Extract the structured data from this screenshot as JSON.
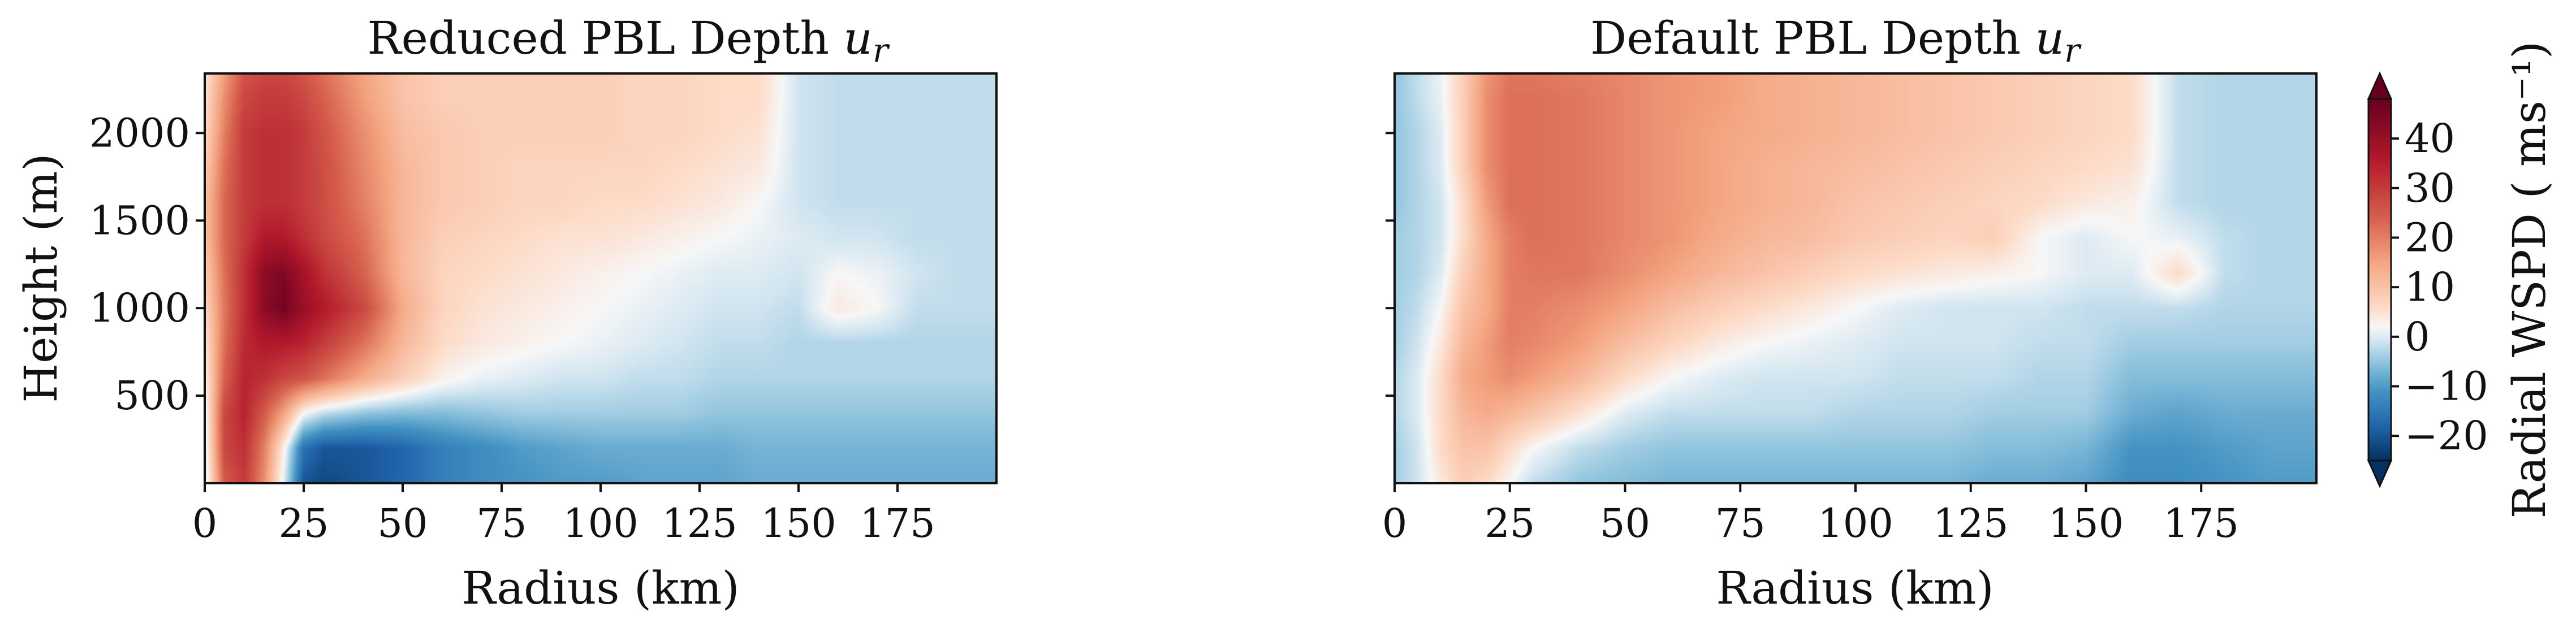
{
  "figure": {
    "colorbar_label": "Radial WSPD ( ms⁻¹)"
  },
  "chart_data": [
    {
      "type": "heatmap",
      "title": "Reduced PBL Depth u_r",
      "title_text": "Reduced PBL Depth ",
      "title_symbol": "u",
      "title_subscript": "r",
      "xlabel": "Radius (km)",
      "ylabel": "Height (m)",
      "xlim": [
        0,
        200
      ],
      "ylim": [
        0,
        2340
      ],
      "xticks": [
        0,
        25,
        50,
        75,
        100,
        125,
        150,
        175
      ],
      "yticks": [
        500,
        1000,
        1500,
        2000
      ],
      "z_units": "ms^-1",
      "x": [
        0,
        5,
        10,
        15,
        20,
        25,
        30,
        40,
        50,
        60,
        70,
        80,
        90,
        100,
        110,
        120,
        130,
        140,
        150,
        160,
        170,
        180,
        190,
        200
      ],
      "y": [
        0,
        200,
        400,
        600,
        800,
        1000,
        1200,
        1400,
        1600,
        1800,
        2000,
        2200,
        2340
      ],
      "z": [
        [
          -2,
          25,
          30,
          18,
          0,
          -20,
          -22,
          -20,
          -18,
          -14,
          -12,
          -11,
          -10,
          -10,
          -9,
          -9,
          -9,
          -8,
          -8,
          -8,
          -8,
          -8,
          -8,
          -8
        ],
        [
          -1,
          28,
          32,
          20,
          3,
          -16,
          -20,
          -20,
          -18,
          -14,
          -12,
          -10,
          -9,
          -8,
          -8,
          -8,
          -8,
          -7,
          -7,
          -7,
          -7,
          -7,
          -7,
          -7
        ],
        [
          0,
          28,
          34,
          25,
          15,
          2,
          -2,
          -5,
          -6,
          -6,
          -5,
          -4,
          -4,
          -4,
          -4,
          -4,
          -5,
          -5,
          -5,
          -5,
          -5,
          -5,
          -5,
          -5
        ],
        [
          2,
          24,
          34,
          32,
          28,
          26,
          22,
          14,
          8,
          3,
          1,
          0,
          -1,
          -1,
          -2,
          -2,
          -3,
          -3,
          -3,
          -3,
          -3,
          -3,
          -3,
          -3
        ],
        [
          4,
          22,
          33,
          36,
          36,
          34,
          30,
          22,
          12,
          6,
          4,
          3,
          2,
          1,
          0,
          -1,
          -2,
          -2,
          -3,
          -3,
          -3,
          -3,
          -3,
          -3
        ],
        [
          6,
          21,
          32,
          42,
          46,
          40,
          36,
          28,
          14,
          7,
          5,
          4,
          3,
          2,
          1,
          0,
          -1,
          -1,
          -2,
          4,
          2,
          -2,
          -2,
          -2
        ],
        [
          8,
          22,
          32,
          42,
          44,
          38,
          32,
          24,
          12,
          7,
          6,
          5,
          4,
          3,
          2,
          1,
          0,
          0,
          -1,
          2,
          1,
          -1,
          -2,
          -2
        ],
        [
          10,
          23,
          30,
          36,
          36,
          32,
          28,
          22,
          12,
          8,
          7,
          6,
          5,
          5,
          4,
          3,
          2,
          1,
          0,
          -1,
          -1,
          -2,
          -2,
          -2
        ],
        [
          10,
          23,
          30,
          32,
          32,
          30,
          27,
          20,
          12,
          9,
          8,
          7,
          7,
          6,
          6,
          5,
          4,
          2,
          -1,
          -2,
          -2,
          -2,
          -2,
          -2
        ],
        [
          8,
          22,
          30,
          32,
          32,
          30,
          27,
          19,
          12,
          9,
          8,
          7,
          7,
          7,
          7,
          6,
          5,
          4,
          -1,
          -2,
          -2,
          -2,
          -2,
          -2
        ],
        [
          6,
          20,
          30,
          32,
          32,
          30,
          26,
          18,
          11,
          9,
          8,
          8,
          8,
          8,
          7,
          7,
          6,
          5,
          -1,
          -2,
          -2,
          -2,
          -2,
          -2
        ],
        [
          5,
          18,
          28,
          30,
          30,
          28,
          24,
          16,
          10,
          8,
          8,
          8,
          8,
          8,
          7,
          7,
          6,
          6,
          -1,
          -2,
          -2,
          -2,
          -2,
          -2
        ],
        [
          4,
          16,
          26,
          28,
          28,
          26,
          22,
          15,
          10,
          8,
          8,
          8,
          8,
          8,
          7,
          7,
          6,
          6,
          -1,
          -2,
          -2,
          -2,
          -2,
          -2
        ]
      ]
    },
    {
      "type": "heatmap",
      "title": "Default PBL Depth u_r",
      "title_text": "Default PBL Depth ",
      "title_symbol": "u",
      "title_subscript": "r",
      "xlabel": "Radius (km)",
      "ylabel": "",
      "xlim": [
        0,
        200
      ],
      "ylim": [
        0,
        2340
      ],
      "xticks": [
        0,
        25,
        50,
        75,
        100,
        125,
        150,
        175
      ],
      "yticks": [
        500,
        1000,
        1500,
        2000
      ],
      "z_units": "ms^-1",
      "x": [
        0,
        5,
        10,
        15,
        20,
        25,
        30,
        40,
        50,
        60,
        70,
        80,
        90,
        100,
        110,
        120,
        130,
        140,
        150,
        160,
        170,
        180,
        190,
        200
      ],
      "y": [
        0,
        200,
        400,
        600,
        800,
        1000,
        1200,
        1400,
        1600,
        1800,
        2000,
        2200,
        2340
      ],
      "z": [
        [
          -4,
          -1,
          4,
          8,
          6,
          2,
          -2,
          -5,
          -6,
          -7,
          -7,
          -7,
          -7,
          -7,
          -7,
          -7,
          -8,
          -8,
          -9,
          -12,
          -12,
          -11,
          -10,
          -10
        ],
        [
          -4,
          -1,
          6,
          10,
          10,
          6,
          2,
          -2,
          -4,
          -5,
          -5,
          -5,
          -5,
          -5,
          -5,
          -5,
          -6,
          -6,
          -7,
          -11,
          -11,
          -10,
          -9,
          -9
        ],
        [
          -3,
          0,
          6,
          12,
          14,
          12,
          10,
          5,
          0,
          -2,
          -2,
          -2,
          -2,
          -3,
          -3,
          -3,
          -4,
          -4,
          -4,
          -8,
          -9,
          -8,
          -8,
          -8
        ],
        [
          -3,
          0,
          6,
          14,
          16,
          18,
          16,
          12,
          6,
          2,
          0,
          -1,
          -1,
          -1,
          -2,
          -2,
          -2,
          -3,
          -3,
          -6,
          -6,
          -6,
          -6,
          -6
        ],
        [
          -4,
          -1,
          4,
          12,
          16,
          20,
          19,
          16,
          11,
          7,
          4,
          2,
          1,
          0,
          -1,
          -1,
          -1,
          -2,
          -2,
          -4,
          -4,
          -4,
          -4,
          -4
        ],
        [
          -4,
          -2,
          2,
          10,
          14,
          20,
          20,
          18,
          15,
          11,
          8,
          6,
          4,
          2,
          0,
          -1,
          -1,
          -1,
          -2,
          -2,
          -2,
          -3,
          -3,
          -3
        ],
        [
          -4,
          -3,
          0,
          8,
          14,
          20,
          21,
          21,
          18,
          15,
          12,
          10,
          8,
          6,
          5,
          4,
          3,
          2,
          0,
          0,
          6,
          -2,
          -3,
          -3
        ],
        [
          -4,
          -3,
          -1,
          6,
          14,
          20,
          22,
          21,
          19,
          17,
          14,
          12,
          11,
          9,
          8,
          7,
          8,
          2,
          0,
          2,
          1,
          -2,
          -3,
          -3
        ],
        [
          -5,
          -3,
          -1,
          6,
          16,
          22,
          22,
          21,
          19,
          17,
          15,
          13,
          12,
          10,
          9,
          8,
          7,
          6,
          4,
          3,
          -2,
          -3,
          -3,
          -3
        ],
        [
          -5,
          -3,
          0,
          8,
          18,
          22,
          22,
          21,
          19,
          17,
          15,
          13,
          12,
          11,
          10,
          9,
          8,
          7,
          6,
          5,
          -2,
          -3,
          -3,
          -3
        ],
        [
          -5,
          -3,
          0,
          8,
          18,
          22,
          22,
          21,
          19,
          17,
          15,
          14,
          13,
          12,
          11,
          10,
          9,
          8,
          7,
          6,
          -2,
          -3,
          -3,
          -3
        ],
        [
          -5,
          -2,
          1,
          8,
          18,
          22,
          22,
          21,
          19,
          17,
          16,
          14,
          13,
          12,
          11,
          10,
          9,
          8,
          7,
          6,
          -2,
          -3,
          -3,
          -3
        ],
        [
          -5,
          -2,
          1,
          8,
          17,
          21,
          21,
          20,
          19,
          17,
          16,
          14,
          13,
          12,
          11,
          10,
          9,
          8,
          7,
          6,
          -2,
          -3,
          -3,
          -3
        ]
      ]
    }
  ],
  "colorbar": {
    "cmap": "RdBu_r",
    "vmin": -25,
    "vmax": 48,
    "ticks": [
      -20,
      -10,
      0,
      10,
      20,
      30,
      40
    ],
    "extend": "both"
  },
  "colormap": {
    "stops": [
      {
        "v": -25,
        "c": "#053061"
      },
      {
        "v": -18,
        "c": "#2166ac"
      },
      {
        "v": -11,
        "c": "#4393c3"
      },
      {
        "v": -5,
        "c": "#92c5de"
      },
      {
        "v": -1,
        "c": "#d1e5f0"
      },
      {
        "v": 2,
        "c": "#f7f7f7"
      },
      {
        "v": 6,
        "c": "#fddbc7"
      },
      {
        "v": 15,
        "c": "#f4a582"
      },
      {
        "v": 24,
        "c": "#d6604d"
      },
      {
        "v": 36,
        "c": "#b2182b"
      },
      {
        "v": 48,
        "c": "#67001f"
      }
    ]
  },
  "colors": {
    "axis": "#111111",
    "text": "#111111",
    "background": "#ffffff"
  }
}
